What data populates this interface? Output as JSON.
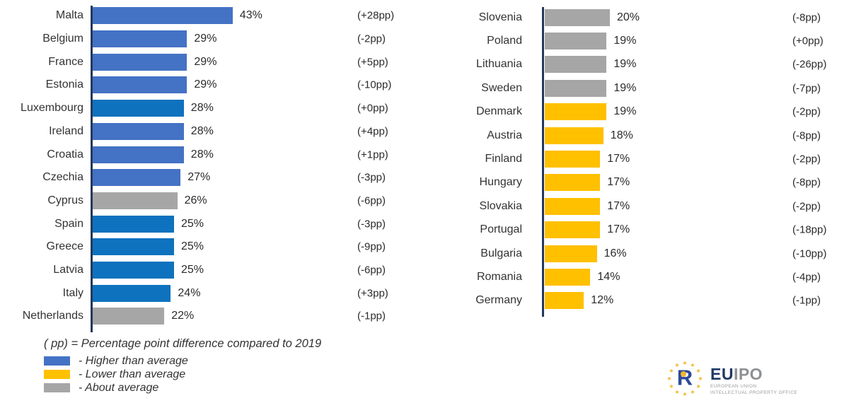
{
  "colors": {
    "higher": "#4472C4",
    "higher_alt": "#0E72BE",
    "lower": "#FFC000",
    "about": "#A6A6A6",
    "axis": "#24385B"
  },
  "chart_data": [
    {
      "type": "bar",
      "orientation": "horizontal",
      "title": "",
      "unit": "%",
      "xlim": [
        0,
        45
      ],
      "grid": false,
      "categories": [
        "Malta",
        "Belgium",
        "France",
        "Estonia",
        "Luxembourg",
        "Ireland",
        "Croatia",
        "Czechia",
        "Cyprus",
        "Spain",
        "Greece",
        "Latvia",
        "Italy",
        "Netherlands"
      ],
      "values": [
        43,
        29,
        29,
        29,
        28,
        28,
        28,
        27,
        26,
        25,
        25,
        25,
        24,
        22
      ],
      "value_labels": [
        "43%",
        "29%",
        "29%",
        "29%",
        "28%",
        "28%",
        "28%",
        "27%",
        "26%",
        "25%",
        "25%",
        "25%",
        "24%",
        "22%"
      ],
      "delta_labels": [
        "(+28pp)",
        "(-2pp)",
        "(+5pp)",
        "(-10pp)",
        "(+0pp)",
        "(+4pp)",
        "(+1pp)",
        "(-3pp)",
        "(-6pp)",
        "(-3pp)",
        "(-9pp)",
        "(-6pp)",
        "(+3pp)",
        "(-1pp)"
      ],
      "tones": [
        "higher",
        "higher",
        "higher",
        "higher",
        "higher_alt",
        "higher",
        "higher",
        "higher",
        "about",
        "higher_alt",
        "higher_alt",
        "higher_alt",
        "higher_alt",
        "about"
      ]
    },
    {
      "type": "bar",
      "orientation": "horizontal",
      "title": "",
      "unit": "%",
      "xlim": [
        0,
        45
      ],
      "grid": false,
      "categories": [
        "Slovenia",
        "Poland",
        "Lithuania",
        "Sweden",
        "Denmark",
        "Austria",
        "Finland",
        "Hungary",
        "Slovakia",
        "Portugal",
        "Bulgaria",
        "Romania",
        "Germany"
      ],
      "values": [
        20,
        19,
        19,
        19,
        19,
        18,
        17,
        17,
        17,
        17,
        16,
        14,
        12
      ],
      "value_labels": [
        "20%",
        "19%",
        "19%",
        "19%",
        "19%",
        "18%",
        "17%",
        "17%",
        "17%",
        "17%",
        "16%",
        "14%",
        "12%"
      ],
      "delta_labels": [
        "(-8pp)",
        "(+0pp)",
        "(-26pp)",
        "(-7pp)",
        "(-2pp)",
        "(-8pp)",
        "(-2pp)",
        "(-8pp)",
        "(-2pp)",
        "(-18pp)",
        "(-10pp)",
        "(-4pp)",
        "(-1pp)"
      ],
      "tones": [
        "about",
        "about",
        "about",
        "about",
        "lower",
        "lower",
        "lower",
        "lower",
        "lower",
        "lower",
        "lower",
        "lower",
        "lower"
      ]
    }
  ],
  "legend": {
    "title": "( pp) = Percentage point difference compared to 2019",
    "items": [
      {
        "label": "- Higher than average",
        "tone": "higher"
      },
      {
        "label": "- Lower than average",
        "tone": "lower"
      },
      {
        "label": "- About average",
        "tone": "about"
      }
    ]
  },
  "logo": {
    "eu": "EU",
    "ipo": "IPO",
    "line1": "EUROPEAN UNION",
    "line2": "INTELLECTUAL PROPERTY OFFICE",
    "mark_letter": "R",
    "star": "★"
  }
}
